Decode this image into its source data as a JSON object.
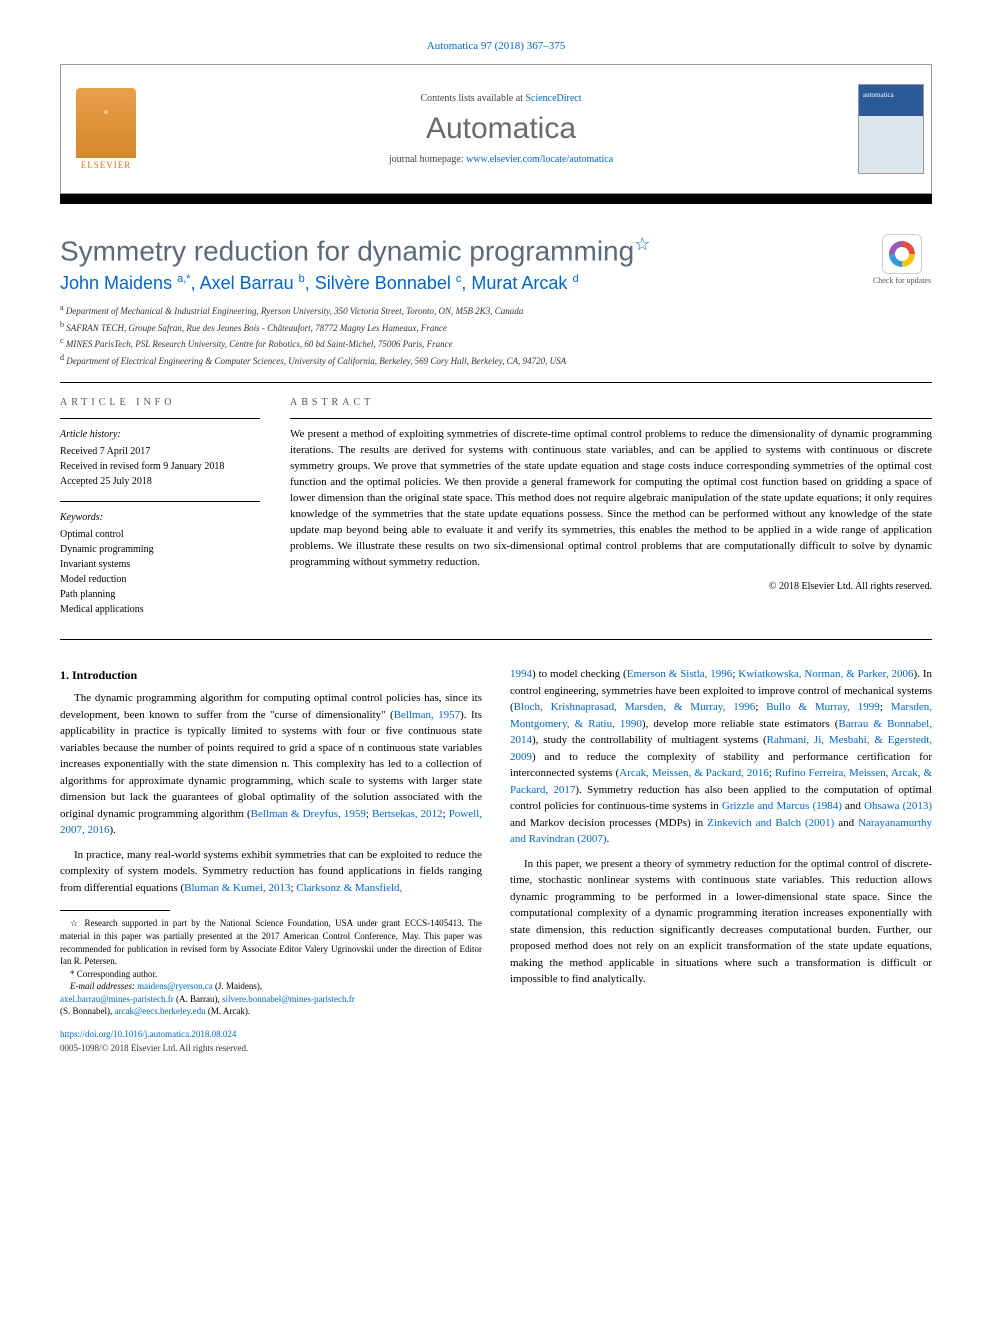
{
  "citation": "Automatica 97 (2018) 367–375",
  "header": {
    "contents_prefix": "Contents lists available at ",
    "contents_link": "ScienceDirect",
    "journal": "Automatica",
    "homepage_prefix": "journal homepage: ",
    "homepage_url": "www.elsevier.com/locate/automatica",
    "publisher": "ELSEVIER",
    "cover_label": "automatica"
  },
  "check_updates": "Check for updates",
  "title": "Symmetry reduction for dynamic programming",
  "title_star": "☆",
  "authors": [
    {
      "name": "John Maidens",
      "marks": "a,*"
    },
    {
      "name": "Axel Barrau",
      "marks": "b"
    },
    {
      "name": "Silvère Bonnabel",
      "marks": "c"
    },
    {
      "name": "Murat Arcak",
      "marks": "d"
    }
  ],
  "affiliations": [
    {
      "mark": "a",
      "text": "Department of Mechanical & Industrial Engineering, Ryerson University, 350 Victoria Street, Toronto, ON, M5B 2K3, Canada"
    },
    {
      "mark": "b",
      "text": "SAFRAN TECH, Groupe Safran, Rue des Jeunes Bois - Châteaufort, 78772 Magny Les Hameaux, France"
    },
    {
      "mark": "c",
      "text": "MINES ParisTech, PSL Research University, Centre for Robotics, 60 bd Saint-Michel, 75006 Paris, France"
    },
    {
      "mark": "d",
      "text": "Department of Electrical Engineering & Computer Sciences, University of California, Berkeley, 569 Cory Hall, Berkeley, CA, 94720, USA"
    }
  ],
  "info_label": "article info",
  "abstract_label": "abstract",
  "history": {
    "title": "Article history:",
    "received": "Received 7 April 2017",
    "revised": "Received in revised form 9 January 2018",
    "accepted": "Accepted 25 July 2018"
  },
  "keywords_title": "Keywords:",
  "keywords": [
    "Optimal control",
    "Dynamic programming",
    "Invariant systems",
    "Model reduction",
    "Path planning",
    "Medical applications"
  ],
  "abstract": "We present a method of exploiting symmetries of discrete-time optimal control problems to reduce the dimensionality of dynamic programming iterations. The results are derived for systems with continuous state variables, and can be applied to systems with continuous or discrete symmetry groups. We prove that symmetries of the state update equation and stage costs induce corresponding symmetries of the optimal cost function and the optimal policies. We then provide a general framework for computing the optimal cost function based on gridding a space of lower dimension than the original state space. This method does not require algebraic manipulation of the state update equations; it only requires knowledge of the symmetries that the state update equations possess. Since the method can be performed without any knowledge of the state update map beyond being able to evaluate it and verify its symmetries, this enables the method to be applied in a wide range of application problems. We illustrate these results on two six-dimensional optimal control problems that are computationally difficult to solve by dynamic programming without symmetry reduction.",
  "abstract_copyright": "© 2018 Elsevier Ltd. All rights reserved.",
  "section1_title": "1. Introduction",
  "para1_a": "The dynamic programming algorithm for computing optimal control policies has, since its development, been known to suffer from the \"curse of dimensionality\" (",
  "para1_ref1": "Bellman, 1957",
  "para1_b": "). Its applicability in practice is typically limited to systems with four or five continuous state variables because the number of points required to grid a space of n continuous state variables increases exponentially with the state dimension n. This complexity has led to a collection of algorithms for approximate dynamic programming, which scale to systems with larger state dimension but lack the guarantees of global optimality of the solution associated with the original dynamic programming algorithm (",
  "para1_ref2": "Bellman & Dreyfus, 1959",
  "para1_sep1": "; ",
  "para1_ref3": "Bertsekas, 2012",
  "para1_sep2": "; ",
  "para1_ref4": "Powell, 2007, 2016",
  "para1_c": ").",
  "para2_a": "In practice, many real-world systems exhibit symmetries that can be exploited to reduce the complexity of system models. Symmetry reduction has found applications in fields ranging from differential equations (",
  "para2_ref1": "Bluman & Kumei, 2013",
  "para2_sep1": "; ",
  "para2_ref2": "Clarksonz & Mansfield,",
  "col2_para1_ref1": "1994",
  "col2_para1_a": ") to model checking (",
  "col2_para1_ref2": "Emerson & Sistla, 1996",
  "col2_para1_sep1": "; ",
  "col2_para1_ref3": "Kwiatkowska, Norman, & Parker, 2006",
  "col2_para1_b": "). In control engineering, symmetries have been exploited to improve control of mechanical systems (",
  "col2_para1_ref4": "Bloch, Krishnaprasad, Marsden, & Murray, 1996",
  "col2_para1_sep2": "; ",
  "col2_para1_ref5": "Bullo & Murray, 1999",
  "col2_para1_sep3": "; ",
  "col2_para1_ref6": "Marsden, Montgomery, & Ratiu, 1990",
  "col2_para1_c": "), develop more reliable state estimators (",
  "col2_para1_ref7": "Barrau & Bonnabel, 2014",
  "col2_para1_d": "), study the controllability of multiagent systems (",
  "col2_para1_ref8": "Rahmani, Ji, Mesbahi, & Egerstedt, 2009",
  "col2_para1_e": ") and to reduce the complexity of stability and performance certification for interconnected systems (",
  "col2_para1_ref9": "Arcak, Meissen, & Packard, 2016",
  "col2_para1_sep4": "; ",
  "col2_para1_ref10": "Rufino Ferreira, Meissen, Arcak, & Packard, 2017",
  "col2_para1_f": "). Symmetry reduction has also been applied to the computation of optimal control policies for continuous-time systems in ",
  "col2_para1_ref11": "Grizzle and Marcus (1984)",
  "col2_para1_g": " and ",
  "col2_para1_ref12": "Ohsawa (2013)",
  "col2_para1_h": " and Markov decision processes (MDPs) in ",
  "col2_para1_ref13": "Zinkevich and Balch (2001)",
  "col2_para1_i": " and ",
  "col2_para1_ref14": "Narayanamurthy and Ravindran (2007)",
  "col2_para1_j": ".",
  "col2_para2": "In this paper, we present a theory of symmetry reduction for the optimal control of discrete-time, stochastic nonlinear systems with continuous state variables. This reduction allows dynamic programming to be performed in a lower-dimensional state space. Since the computational complexity of a dynamic programming iteration increases exponentially with state dimension, this reduction significantly decreases computational burden. Further, our proposed method does not rely on an explicit transformation of the state update equations, making the method applicable in situations where such a transformation is difficult or impossible to find analytically.",
  "footnote_star": "☆",
  "footnote_star_text": " Research supported in part by the National Science Foundation, USA under grant ECCS-1405413. The material in this paper was partially presented at the 2017 American Control Conference, May. This paper was recommended for publication in revised form by Associate Editor Valery Ugrinovskii under the direction of Editor Ian R. Petersen.",
  "corr_mark": "*",
  "corr_text": " Corresponding author.",
  "email_label": "E-mail addresses: ",
  "emails": [
    {
      "addr": "maidens@ryerson.ca",
      "who": " (J. Maidens),"
    },
    {
      "addr": "axel.barrau@mines-paristech.fr",
      "who": " (A. Barrau), "
    },
    {
      "addr": "silvere.bonnabel@mines-paristech.fr",
      "who": " (S. Bonnabel), "
    },
    {
      "addr": "arcak@eecs.berkeley.edu",
      "who": " (M. Arcak)."
    }
  ],
  "doi": "https://doi.org/10.1016/j.automatica.2018.08.024",
  "footer_copy": "0005-1098/© 2018 Elsevier Ltd. All rights reserved.",
  "colors": {
    "link": "#0066cc",
    "title_gray": "#5a6a7a",
    "journal_gray": "#6a6a6a",
    "elsevier_orange": "#e8701a"
  }
}
